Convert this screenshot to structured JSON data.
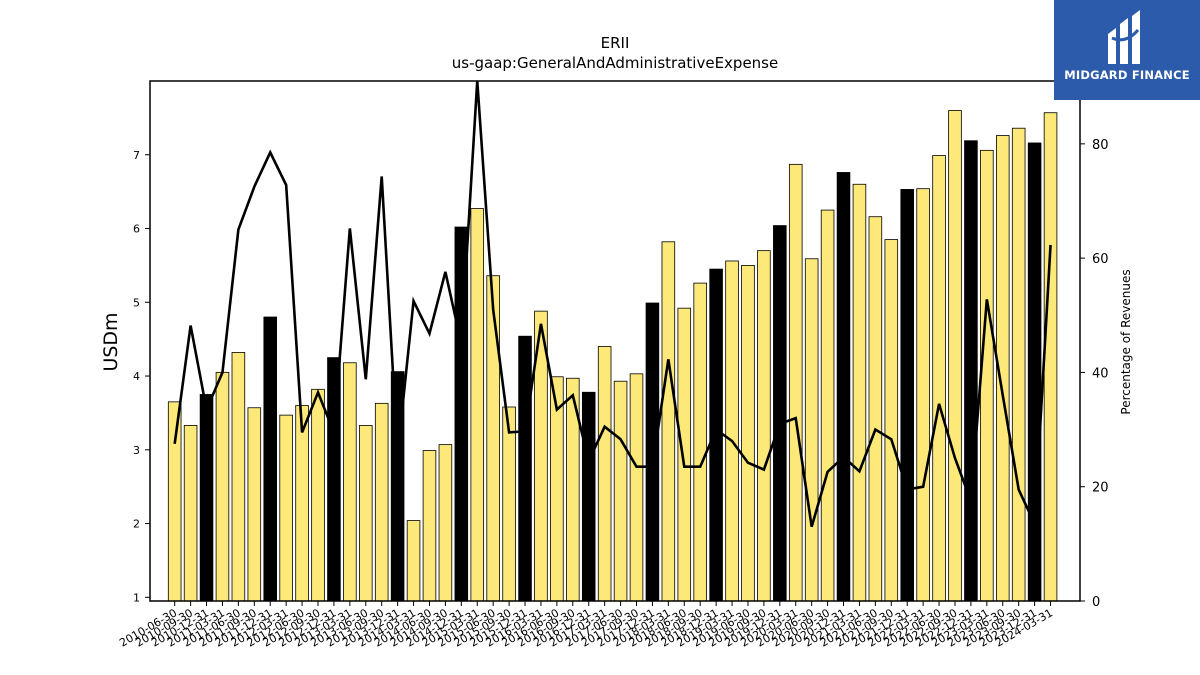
{
  "chart_data": {
    "type": "bar",
    "title": "ERII",
    "subtitle": "us-gaap:GeneralAndAdministrativeExpense",
    "ylabel": "USDm",
    "y2label": "Percentage of Revenues",
    "ylim": [
      0.95,
      8.0
    ],
    "y2lim": [
      0,
      91
    ],
    "yticks": [
      1,
      2,
      3,
      4,
      5,
      6,
      7
    ],
    "y2ticks": [
      0,
      20,
      40,
      60,
      80
    ],
    "grid": false,
    "colors": {
      "bar": "#fce97a",
      "bar_q4": "#000000",
      "line": "#000000",
      "edge": "#000000"
    },
    "categories": [
      "2010-06-30",
      "2010-09-30",
      "2010-12-31",
      "2011-03-31",
      "2011-06-30",
      "2011-09-30",
      "2011-12-31",
      "2012-03-31",
      "2012-06-30",
      "2012-09-30",
      "2012-12-31",
      "2013-03-31",
      "2013-06-30",
      "2013-09-30",
      "2013-12-31",
      "2014-03-31",
      "2014-06-30",
      "2014-09-30",
      "2014-12-31",
      "2015-03-31",
      "2015-06-30",
      "2015-09-30",
      "2015-12-31",
      "2016-03-31",
      "2016-06-30",
      "2016-09-30",
      "2016-12-31",
      "2017-03-31",
      "2017-06-30",
      "2017-09-30",
      "2017-12-31",
      "2018-03-31",
      "2018-06-30",
      "2018-09-30",
      "2018-12-31",
      "2019-03-31",
      "2019-06-30",
      "2019-09-30",
      "2019-12-31",
      "2020-03-31",
      "2020-06-30",
      "2020-09-30",
      "2020-12-31",
      "2021-03-31",
      "2021-06-30",
      "2021-09-30",
      "2021-12-31",
      "2022-03-31",
      "2022-06-30",
      "2022-09-30",
      "2022-12-31",
      "2023-03-31",
      "2023-06-30",
      "2023-09-30",
      "2023-12-31",
      "2024-03-31"
    ],
    "series": [
      {
        "kind": "bar",
        "axis": "left",
        "values": [
          3.65,
          3.33,
          3.75,
          4.05,
          4.32,
          3.57,
          4.8,
          3.47,
          3.6,
          3.82,
          4.25,
          4.18,
          3.33,
          3.63,
          4.06,
          2.04,
          2.99,
          3.07,
          6.02,
          6.27,
          5.36,
          3.58,
          4.54,
          4.88,
          3.99,
          3.97,
          3.78,
          4.4,
          3.93,
          4.03,
          4.99,
          5.82,
          4.92,
          5.26,
          5.45,
          5.56,
          5.5,
          5.7,
          6.04,
          6.87,
          5.59,
          6.25,
          6.76,
          6.6,
          6.16,
          5.85,
          6.53,
          6.54,
          6.99,
          7.6,
          7.19,
          7.06,
          7.26,
          7.36,
          7.16,
          7.57
        ]
      },
      {
        "kind": "line",
        "axis": "right",
        "values": [
          27.5,
          48.2,
          33.5,
          40.0,
          65.0,
          72.5,
          78.5,
          72.8,
          29.5,
          36.5,
          29.5,
          65.2,
          38.8,
          74.3,
          25.8,
          52.5,
          46.8,
          57.6,
          45.0,
          91.0,
          51.0,
          29.5,
          29.7,
          48.5,
          33.5,
          36.0,
          24.5,
          30.5,
          28.3,
          23.5,
          23.5,
          42.3,
          23.5,
          23.5,
          30.0,
          28.0,
          24.2,
          23.0,
          31.0,
          32.0,
          13.0,
          22.6,
          25.2,
          22.7,
          30.0,
          28.3,
          19.5,
          20.0,
          34.5,
          25.0,
          17.5,
          52.8,
          36.0,
          19.5,
          13.5,
          62.3
        ]
      }
    ]
  },
  "logo": {
    "text": "MIDGARD FINANCE",
    "icon": "midgard-logo-icon",
    "background": "#2d5bab"
  }
}
